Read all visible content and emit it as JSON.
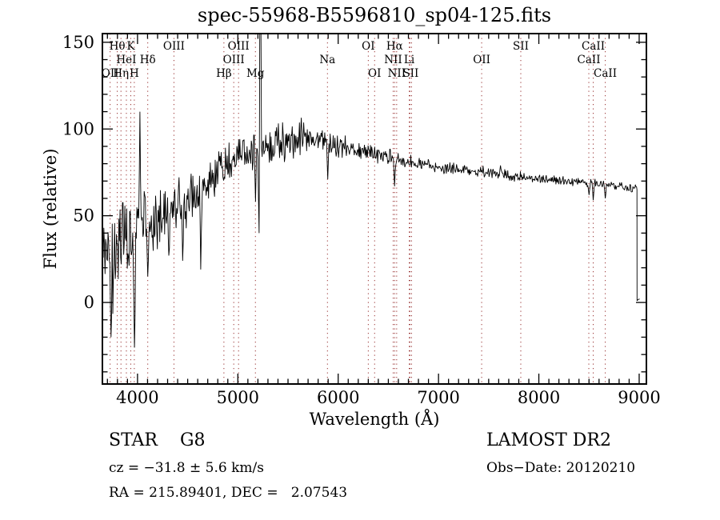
{
  "figure": {
    "title": "spec-55968-B5596810_sp04-125.fits",
    "annotations": {
      "class_label": "STAR    G8",
      "cz": "cz = −31.8 ± 5.6 km/s",
      "radec": "RA = 215.89401, DEC =   2.07543",
      "survey": "LAMOST DR2",
      "obs_date": "Obs−Date: 20120210"
    }
  },
  "chart_data": {
    "type": "line",
    "title": "spec-55968-B5596810_sp04-125.fits",
    "xlabel": "Wavelength (Å)",
    "ylabel": "Flux (relative)",
    "xlim": [
      3650,
      9072
    ],
    "ylim": [
      -47,
      155
    ],
    "xticks": [
      4000,
      5000,
      6000,
      7000,
      8000,
      9000
    ],
    "yticks": [
      0,
      50,
      100,
      150
    ],
    "xtick_minor_step": 100,
    "ytick_minor_step": 10,
    "grid": false,
    "legend": "none",
    "line_color": "#000000",
    "marker_color": "#993333",
    "line_markers": [
      3727,
      3798,
      3835,
      3889,
      3933,
      3968,
      4102,
      4363,
      4861,
      4959,
      5007,
      5175,
      5893,
      6300,
      6363,
      6548,
      6563,
      6583,
      6708,
      6716,
      6731,
      7430,
      7820,
      8498,
      8542,
      8662
    ],
    "line_labels": [
      {
        "text": "Hθ",
        "wl": 3798,
        "row": 1
      },
      {
        "text": "K",
        "wl": 3933,
        "row": 1
      },
      {
        "text": "OIII",
        "wl": 4363,
        "row": 1
      },
      {
        "text": "OIII",
        "wl": 5007,
        "row": 1
      },
      {
        "text": "OI",
        "wl": 6300,
        "row": 1
      },
      {
        "text": "Hα",
        "wl": 6563,
        "row": 1
      },
      {
        "text": "SII",
        "wl": 7820,
        "row": 1
      },
      {
        "text": "CaII",
        "wl": 8542,
        "row": 1
      },
      {
        "text": "HeI",
        "wl": 3889,
        "row": 2
      },
      {
        "text": "Hδ",
        "wl": 4102,
        "row": 2
      },
      {
        "text": "OIII",
        "wl": 4959,
        "row": 2
      },
      {
        "text": "Na",
        "wl": 5893,
        "row": 2
      },
      {
        "text": "NII",
        "wl": 6548,
        "row": 2
      },
      {
        "text": "Li",
        "wl": 6708,
        "row": 2
      },
      {
        "text": "OII",
        "wl": 7430,
        "row": 2
      },
      {
        "text": "CaII",
        "wl": 8498,
        "row": 2
      },
      {
        "text": "OII",
        "wl": 3727,
        "row": 3
      },
      {
        "text": "Hη",
        "wl": 3835,
        "row": 3
      },
      {
        "text": "H",
        "wl": 3968,
        "row": 3
      },
      {
        "text": "Hβ",
        "wl": 4861,
        "row": 3
      },
      {
        "text": "Mg",
        "wl": 5175,
        "row": 3
      },
      {
        "text": "OI",
        "wl": 6363,
        "row": 3
      },
      {
        "text": "NII",
        "wl": 6583,
        "row": 3
      },
      {
        "text": "SII",
        "wl": 6723,
        "row": 3
      },
      {
        "text": "CaII",
        "wl": 8662,
        "row": 3
      }
    ],
    "envelope": [
      [
        3650,
        28
      ],
      [
        3720,
        22
      ],
      [
        3800,
        26
      ],
      [
        3880,
        32
      ],
      [
        3960,
        35
      ],
      [
        4040,
        40
      ],
      [
        4120,
        45
      ],
      [
        4200,
        46
      ],
      [
        4300,
        50
      ],
      [
        4400,
        55
      ],
      [
        4500,
        58
      ],
      [
        4600,
        63
      ],
      [
        4700,
        68
      ],
      [
        4800,
        73
      ],
      [
        4900,
        80
      ],
      [
        5000,
        85
      ],
      [
        5100,
        86
      ],
      [
        5200,
        88
      ],
      [
        5320,
        89
      ],
      [
        5450,
        92
      ],
      [
        5600,
        95
      ],
      [
        5750,
        97
      ],
      [
        5850,
        94
      ],
      [
        5950,
        91
      ],
      [
        6100,
        89
      ],
      [
        6250,
        87
      ],
      [
        6400,
        85
      ],
      [
        6550,
        83
      ],
      [
        6700,
        81
      ],
      [
        6900,
        79
      ],
      [
        7100,
        77
      ],
      [
        7300,
        76
      ],
      [
        7500,
        75
      ],
      [
        7700,
        73
      ],
      [
        7900,
        72
      ],
      [
        8100,
        71
      ],
      [
        8300,
        70
      ],
      [
        8500,
        69
      ],
      [
        8700,
        68
      ],
      [
        8900,
        66
      ],
      [
        8976,
        66
      ]
    ],
    "noise_halfwidth": [
      [
        3650,
        30
      ],
      [
        3780,
        32
      ],
      [
        3900,
        29
      ],
      [
        4000,
        26
      ],
      [
        4080,
        21
      ],
      [
        4160,
        17
      ],
      [
        4300,
        15
      ],
      [
        4500,
        14
      ],
      [
        4700,
        12
      ],
      [
        4900,
        11
      ],
      [
        5100,
        10
      ],
      [
        5400,
        10
      ],
      [
        5700,
        9
      ],
      [
        5900,
        7
      ],
      [
        6100,
        5.5
      ],
      [
        6400,
        4.5
      ],
      [
        6700,
        4
      ],
      [
        7000,
        3.5
      ],
      [
        7400,
        3
      ],
      [
        7800,
        2.8
      ],
      [
        8300,
        2.5
      ],
      [
        8976,
        2.3
      ]
    ],
    "spikes": [
      [
        4024,
        110
      ],
      [
        5222,
        400
      ],
      [
        7618,
        79
      ]
    ],
    "dips": [
      [
        3735,
        -20
      ],
      [
        3970,
        -26
      ],
      [
        4101,
        15
      ],
      [
        4310,
        27
      ],
      [
        4450,
        24
      ],
      [
        4632,
        19
      ],
      [
        5175,
        58
      ],
      [
        5210,
        40
      ],
      [
        5893,
        71
      ],
      [
        6563,
        67
      ],
      [
        8498,
        62
      ],
      [
        8542,
        59
      ],
      [
        8662,
        60
      ]
    ],
    "end_drop": {
      "from_wl": 8978,
      "to_flux": 1,
      "end_wl": 9005
    },
    "sample_step_angstrom": 6,
    "random_seed": 9
  }
}
